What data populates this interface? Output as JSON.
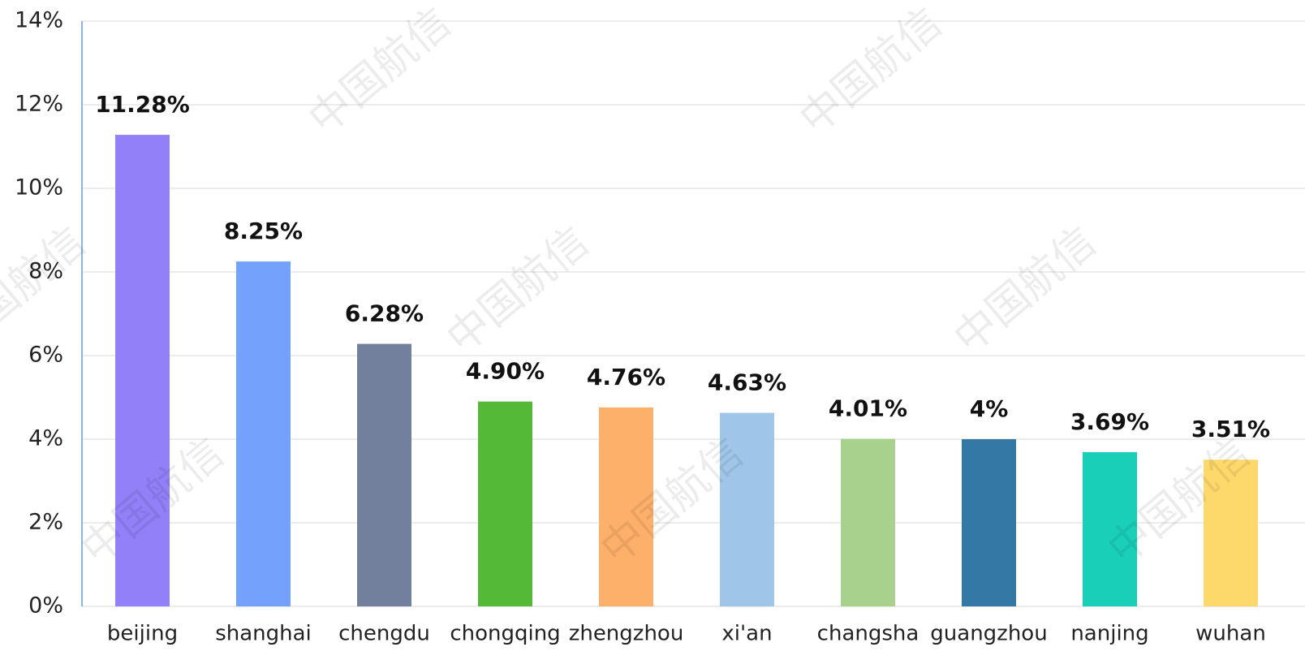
{
  "chart_data": {
    "type": "bar",
    "categories": [
      "beijing",
      "shanghai",
      "chengdu",
      "chongqing",
      "zhengzhou",
      "xi'an",
      "changsha",
      "guangzhou",
      "nanjing",
      "wuhan"
    ],
    "values": [
      11.28,
      8.25,
      6.28,
      4.9,
      4.76,
      4.63,
      4.01,
      4,
      3.69,
      3.51
    ],
    "value_labels": [
      "11.28%",
      "8.25%",
      "6.28%",
      "4.90%",
      "4.76%",
      "4.63%",
      "4.01%",
      "4%",
      "3.69%",
      "3.51%"
    ],
    "colors": [
      "#9180f8",
      "#73a1fb",
      "#72809e",
      "#55b938",
      "#fdb069",
      "#9fc5e8",
      "#a9d18e",
      "#3479a6",
      "#1acfb8",
      "#fdd86a"
    ],
    "ylim": [
      0,
      14
    ],
    "yticks": [
      {
        "value": 0,
        "label": "0%"
      },
      {
        "value": 2,
        "label": "2%"
      },
      {
        "value": 4,
        "label": "4%"
      },
      {
        "value": 6,
        "label": "6%"
      },
      {
        "value": 8,
        "label": "8%"
      },
      {
        "value": 10,
        "label": "10%"
      },
      {
        "value": 12,
        "label": "12%"
      },
      {
        "value": 14,
        "label": "14%"
      }
    ],
    "grid": true,
    "watermark": "中国航信"
  }
}
